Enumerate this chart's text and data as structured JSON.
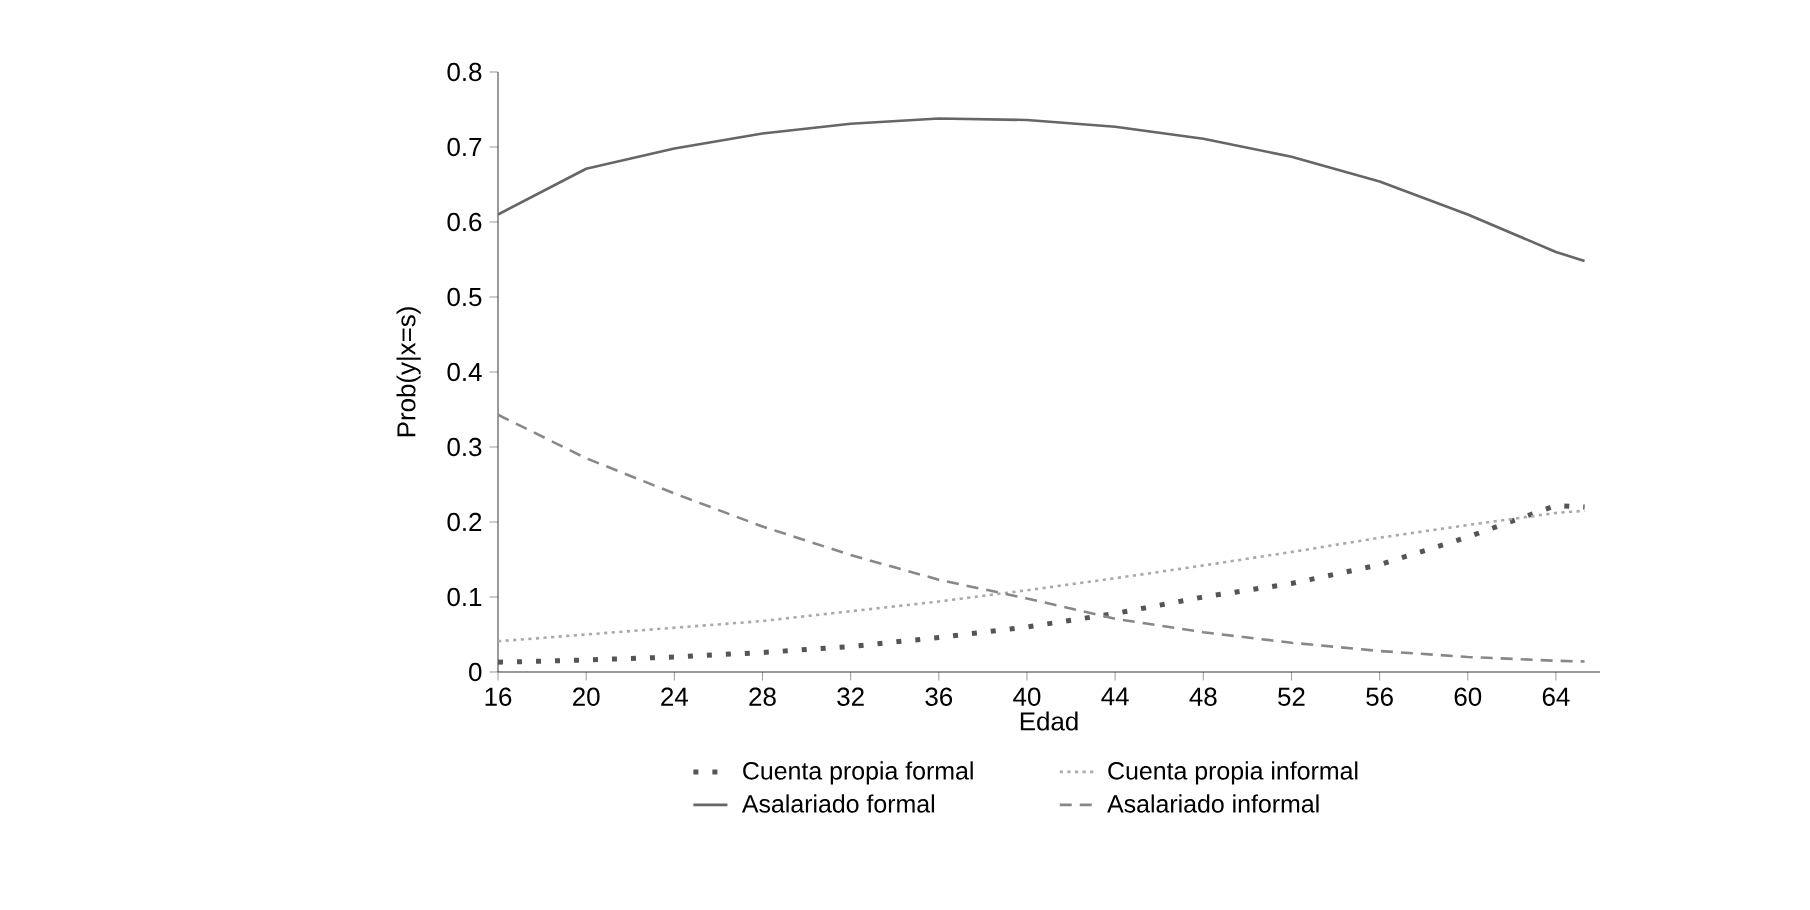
{
  "chart_data": {
    "type": "line",
    "xlabel": "Edad",
    "ylabel": "Prob(y|x=s)",
    "xlim": [
      16,
      66
    ],
    "ylim": [
      0,
      0.8
    ],
    "xticks": [
      16,
      20,
      24,
      28,
      32,
      36,
      40,
      44,
      48,
      52,
      56,
      60,
      64
    ],
    "yticks": [
      0,
      0.1,
      0.2,
      0.3,
      0.4,
      0.5,
      0.6,
      0.7,
      0.8
    ],
    "legend": "bottom",
    "grid": false,
    "x": [
      16,
      20,
      24,
      28,
      32,
      36,
      40,
      44,
      48,
      52,
      56,
      60,
      64,
      65.3
    ],
    "series": [
      {
        "name": "Cuenta propia formal",
        "color": "#555555",
        "line_style": "dotted",
        "values": [
          0.013,
          0.016,
          0.02,
          0.026,
          0.034,
          0.046,
          0.06,
          0.078,
          0.1,
          0.118,
          0.143,
          0.18,
          0.222,
          0.22
        ]
      },
      {
        "name": "Cuenta propia informal",
        "color": "#aaaaaa",
        "line_style": "dotted",
        "values": [
          0.041,
          0.05,
          0.059,
          0.068,
          0.081,
          0.094,
          0.109,
          0.125,
          0.142,
          0.16,
          0.179,
          0.196,
          0.212,
          0.215
        ]
      },
      {
        "name": "Asalariado formal",
        "color": "#666666",
        "line_style": "solid",
        "values": [
          0.61,
          0.671,
          0.698,
          0.718,
          0.731,
          0.738,
          0.736,
          0.727,
          0.711,
          0.687,
          0.654,
          0.61,
          0.56,
          0.548
        ]
      },
      {
        "name": "Asalariado informal",
        "color": "#888888",
        "line_style": "dashed",
        "values": [
          0.343,
          0.285,
          0.238,
          0.194,
          0.156,
          0.123,
          0.098,
          0.071,
          0.053,
          0.039,
          0.028,
          0.02,
          0.015,
          0.014
        ]
      }
    ]
  }
}
